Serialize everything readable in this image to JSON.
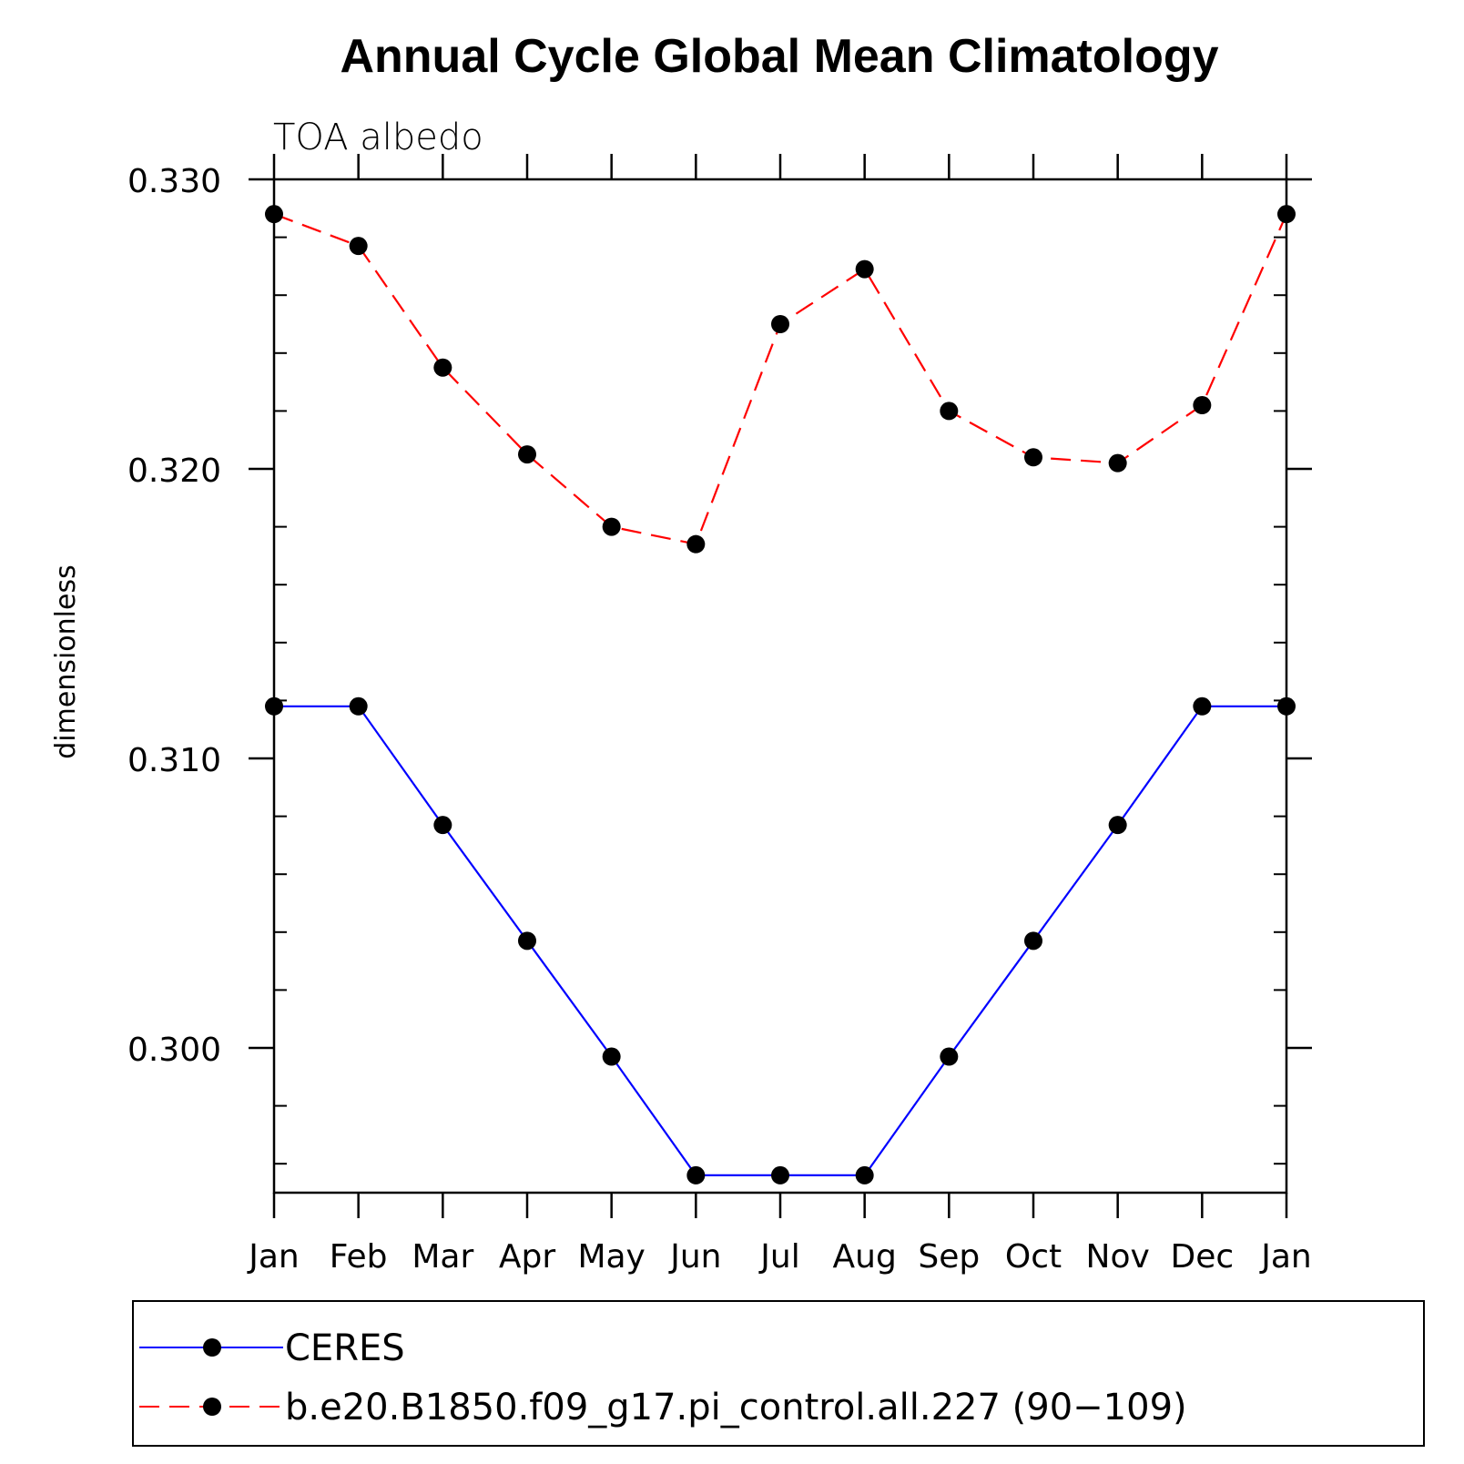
{
  "chart_data": {
    "type": "line",
    "title": "Annual Cycle Global Mean Climatology",
    "subtitle": "TOA albedo",
    "ylabel": "dimensionless",
    "xlabel": "",
    "categories": [
      "Jan",
      "Feb",
      "Mar",
      "Apr",
      "May",
      "Jun",
      "Jul",
      "Aug",
      "Sep",
      "Oct",
      "Nov",
      "Dec",
      "Jan"
    ],
    "ylim": [
      0.295,
      0.33
    ],
    "yticks": [
      0.3,
      0.31,
      0.32,
      0.33
    ],
    "ytick_labels": [
      "0.300",
      "0.310",
      "0.320",
      "0.330"
    ],
    "y_minor_step": 0.002,
    "series": [
      {
        "name": "CERES",
        "color": "#0000ff",
        "dash": "solid",
        "marker": "filled-circle",
        "values": [
          0.3118,
          0.3118,
          0.3077,
          0.3037,
          0.2997,
          0.2956,
          0.2956,
          0.2956,
          0.2997,
          0.3037,
          0.3077,
          0.3118,
          0.3118
        ]
      },
      {
        "name": "b.e20.B1850.f09_g17.pi_control.all.227 (90−109)",
        "color": "#ff0000",
        "dash": "dashed",
        "marker": "filled-circle",
        "values": [
          0.3288,
          0.3277,
          0.3235,
          0.3205,
          0.318,
          0.3174,
          0.325,
          0.3269,
          0.322,
          0.3204,
          0.3202,
          0.3222,
          0.3288
        ]
      }
    ],
    "legend_position": "bottom",
    "grid": false
  }
}
